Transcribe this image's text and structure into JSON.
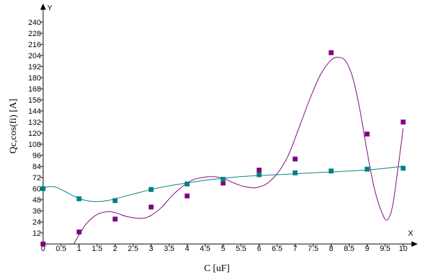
{
  "chart_data": {
    "type": "scatter",
    "xlabel": "C [uF]",
    "ylabel": "Qc,cos(fi) [A]",
    "x_axis_letter": "X",
    "y_axis_letter": "Y",
    "xlim": [
      0,
      10
    ],
    "ylim": [
      0,
      240
    ],
    "x_ticks": [
      0,
      0.5,
      1,
      1.5,
      2,
      2.5,
      3,
      3.5,
      4,
      4.5,
      5,
      5.5,
      6,
      6.5,
      7,
      7.5,
      8,
      8.5,
      9,
      9.5,
      10
    ],
    "y_ticks": [
      0,
      12,
      24,
      36,
      48,
      60,
      72,
      84,
      96,
      108,
      120,
      132,
      144,
      156,
      168,
      180,
      192,
      204,
      216,
      228,
      240
    ],
    "grid": false,
    "legend": "none",
    "series": [
      {
        "color": "#800080",
        "marker": "square",
        "x": [
          0,
          1,
          2,
          3,
          4,
          5,
          6,
          7,
          8,
          9,
          10
        ],
        "y": [
          0,
          13,
          27,
          40,
          52,
          66,
          80,
          92,
          207,
          119,
          132
        ],
        "curve": {
          "x": [
            0.85,
            1.0,
            1.2,
            1.5,
            1.8,
            2.0,
            2.3,
            2.6,
            2.8,
            3.0,
            3.3,
            3.6,
            4.0,
            4.3,
            4.7,
            5.0,
            5.3,
            5.6,
            5.9,
            6.2,
            6.5,
            6.8,
            7.1,
            7.4,
            7.7,
            8.0,
            8.2,
            8.4,
            8.6,
            8.8,
            9.0,
            9.2,
            9.4,
            9.55,
            9.7,
            9.85,
            10.0
          ],
          "y": [
            0,
            10,
            22,
            32,
            35,
            34,
            30,
            28,
            28,
            31,
            40,
            53,
            66,
            71,
            73,
            71,
            66,
            62,
            61,
            65,
            76,
            95,
            125,
            156,
            183,
            199,
            202,
            198,
            180,
            145,
            100,
            60,
            35,
            26,
            40,
            80,
            125
          ]
        }
      },
      {
        "color": "#008080",
        "marker": "square",
        "x": [
          0,
          1,
          2,
          3,
          4,
          5,
          6,
          7,
          8,
          9,
          10
        ],
        "y": [
          60,
          49,
          47,
          59,
          65,
          70,
          75,
          77,
          79,
          81,
          82
        ],
        "curve": {
          "x": [
            0,
            0.3,
            0.6,
            0.9,
            1.2,
            1.5,
            1.8,
            2.1,
            2.5,
            3.0,
            3.5,
            4.0,
            4.5,
            5.0,
            5.5,
            6.0,
            6.5,
            7.0,
            7.5,
            8.0,
            8.5,
            9.0,
            9.5,
            10.0
          ],
          "y": [
            61,
            62,
            57,
            51,
            47,
            46,
            47,
            50,
            54,
            59,
            63,
            66,
            69,
            71,
            73,
            74,
            75,
            76,
            77,
            78,
            79,
            80,
            82,
            84
          ]
        }
      }
    ]
  }
}
